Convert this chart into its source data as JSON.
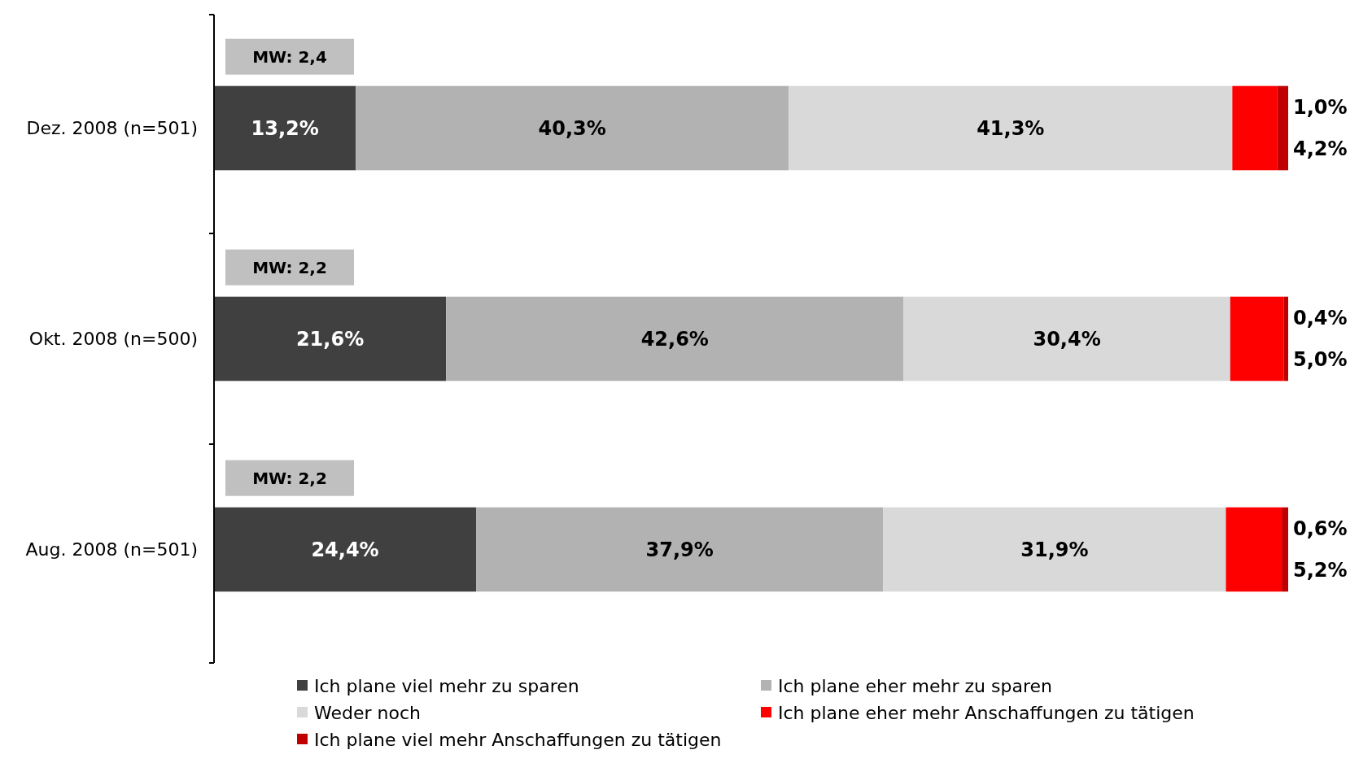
{
  "chart_data": {
    "type": "bar",
    "orientation": "horizontal",
    "stacked": true,
    "data_labels": true,
    "legend": "bottom",
    "tick_labels": "y",
    "xlim": [
      0,
      100
    ],
    "categories": [
      "Dez. 2008 (n=501)",
      "Okt. 2008 (n=500)",
      "Aug. 2008 (n=501)"
    ],
    "annotations": [
      "MW: 2,4",
      "MW: 2,2",
      "MW: 2,2"
    ],
    "series": [
      {
        "name": "Ich plane viel mehr zu sparen",
        "color": "#404040",
        "values": [
          13.2,
          21.6,
          24.4
        ],
        "value_labels": [
          "13,2%",
          "21,6%",
          "24,4%"
        ]
      },
      {
        "name": "Ich plane eher mehr zu sparen",
        "color": "#b2b2b2",
        "values": [
          40.3,
          42.6,
          37.9
        ],
        "value_labels": [
          "40,3%",
          "42,6%",
          "37,9%"
        ]
      },
      {
        "name": "Weder noch",
        "color": "#d9d9d9",
        "values": [
          41.3,
          30.4,
          31.9
        ],
        "value_labels": [
          "41,3%",
          "30,4%",
          "31,9%"
        ]
      },
      {
        "name": "Ich plane eher mehr Anschaffungen zu tätigen",
        "color": "#ff0000",
        "values": [
          4.2,
          5.0,
          5.2
        ],
        "value_labels": [
          "4,2%",
          "5,0%",
          "5,2%"
        ]
      },
      {
        "name": "Ich plane viel mehr Anschaffungen zu tätigen",
        "color": "#c00000",
        "values": [
          1.0,
          0.4,
          0.6
        ],
        "value_labels": [
          "1,0%",
          "0,4%",
          "0,6%"
        ]
      }
    ]
  }
}
